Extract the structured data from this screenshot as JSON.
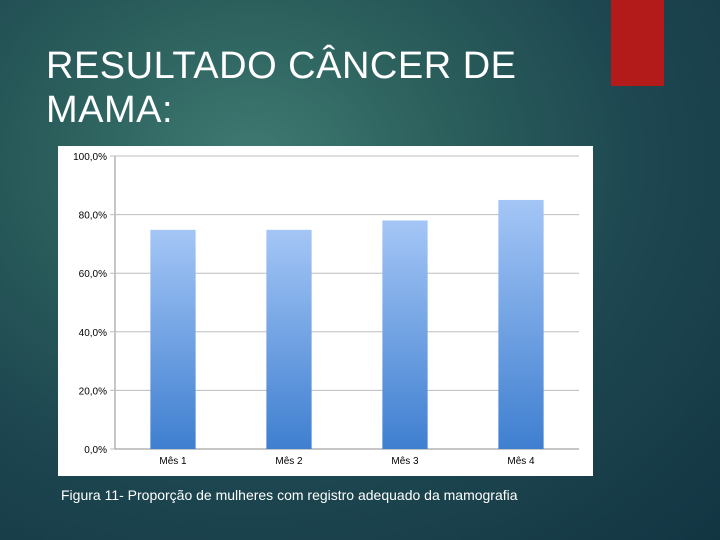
{
  "slide": {
    "title_line1": "RESULTADO CÂNCER DE",
    "title_line2": "MAMA:",
    "caption": "Figura 11- Proporção de mulheres com registro adequado da mamografia",
    "accent_color": "#b31b1b"
  },
  "chart_data": {
    "type": "bar",
    "categories": [
      "Mês 1",
      "Mês 2",
      "Mês 3",
      "Mês 4"
    ],
    "values": [
      74.8,
      74.8,
      78.0,
      85.0
    ],
    "ylim": [
      0,
      100
    ],
    "y_ticks": [
      0,
      20,
      40,
      60,
      80,
      100
    ],
    "y_tick_labels": [
      "0,0%",
      "20,0%",
      "40,0%",
      "60,0%",
      "80,0%",
      "100,0%"
    ],
    "grid": true,
    "legend": "none",
    "bar_gradient_top": "#a4c6f6",
    "bar_gradient_bottom": "#3f7fd0",
    "title": "",
    "xlabel": "",
    "ylabel": ""
  }
}
